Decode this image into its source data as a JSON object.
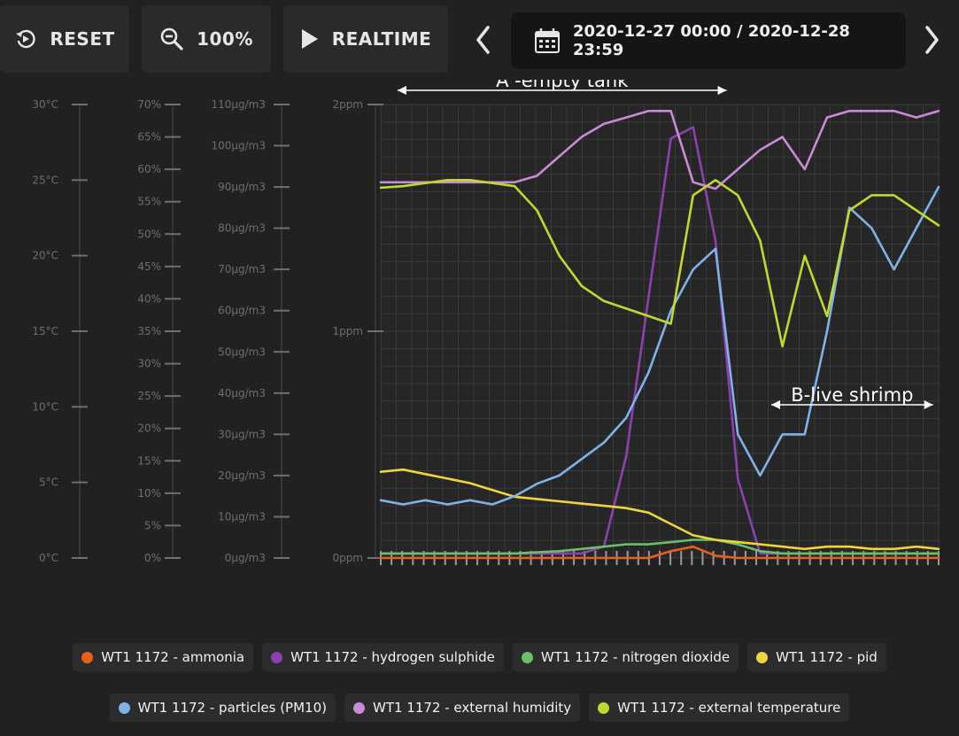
{
  "toolbar": {
    "reset_label": "RESET",
    "zoom_label": "100%",
    "realtime_label": "REALTIME",
    "date_range": "2020-12-27 00:00 / 2020-12-28 23:59",
    "icons": {
      "reset": "reset-icon",
      "zoom": "zoom-out-icon",
      "realtime": "play-icon",
      "calendar": "calendar-icon",
      "prev": "chevron-left-icon",
      "next": "chevron-right-icon"
    }
  },
  "colors": {
    "background": "#212121",
    "grid": "#3a3a3a",
    "axis_text": "#6e6e6e",
    "annotation": "#ffffff"
  },
  "chart_data": {
    "type": "line",
    "x": [
      0,
      4,
      8,
      12,
      16,
      20,
      24,
      28,
      32,
      36,
      40,
      44,
      48,
      52,
      56,
      60,
      64,
      68,
      72,
      76,
      80,
      84,
      88,
      92,
      96,
      100
    ],
    "xlim": [
      0,
      100
    ],
    "axes": [
      {
        "id": "temperature",
        "ticks": [
          "0°C",
          "5°C",
          "10°C",
          "15°C",
          "20°C",
          "25°C",
          "30°C"
        ],
        "range": [
          0,
          30
        ]
      },
      {
        "id": "humidity",
        "ticks": [
          "0%",
          "5%",
          "10%",
          "15%",
          "20%",
          "25%",
          "30%",
          "35%",
          "40%",
          "45%",
          "50%",
          "55%",
          "60%",
          "65%",
          "70%"
        ],
        "range": [
          0,
          70
        ]
      },
      {
        "id": "particles",
        "ticks": [
          "0µg/m3",
          "10µg/m3",
          "20µg/m3",
          "30µg/m3",
          "40µg/m3",
          "50µg/m3",
          "60µg/m3",
          "70µg/m3",
          "80µg/m3",
          "90µg/m3",
          "100µg/m3",
          "110µg/m3"
        ],
        "range": [
          0,
          110
        ]
      },
      {
        "id": "gas",
        "ticks": [
          "0ppm",
          "1ppm",
          "2ppm"
        ],
        "range": [
          0,
          2
        ]
      }
    ],
    "series": [
      {
        "name": "WT1 1172 - ammonia",
        "color": "#e8601c",
        "axis": "gas",
        "values": [
          0,
          0,
          0,
          0,
          0,
          0,
          0,
          0,
          0,
          0,
          0,
          0,
          0,
          0.03,
          0.05,
          0.01,
          0,
          0,
          0,
          0,
          0,
          0,
          0,
          0,
          0,
          0
        ]
      },
      {
        "name": "WT1 1172 - hydrogen sulphide",
        "color": "#8e3fb0",
        "axis": "gas",
        "values": [
          0.02,
          0.02,
          0.02,
          0.02,
          0.02,
          0.02,
          0.02,
          0.02,
          0.02,
          0.02,
          0.05,
          0.45,
          1.15,
          1.85,
          1.9,
          1.4,
          0.35,
          0.02,
          0.02,
          0.02,
          0.02,
          0.02,
          0.02,
          0.02,
          0.02,
          0.02
        ]
      },
      {
        "name": "WT1 1172 - nitrogen dioxide",
        "color": "#6abf69",
        "axis": "gas",
        "values": [
          0.02,
          0.02,
          0.02,
          0.02,
          0.02,
          0.02,
          0.02,
          0.025,
          0.03,
          0.04,
          0.05,
          0.06,
          0.06,
          0.07,
          0.08,
          0.08,
          0.06,
          0.03,
          0.02,
          0.02,
          0.02,
          0.02,
          0.02,
          0.02,
          0.02,
          0.02
        ]
      },
      {
        "name": "WT1 1172 - pid",
        "color": "#f0d43a",
        "axis": "gas",
        "values": [
          0.38,
          0.39,
          0.37,
          0.35,
          0.33,
          0.3,
          0.27,
          0.26,
          0.25,
          0.24,
          0.23,
          0.22,
          0.2,
          0.15,
          0.1,
          0.08,
          0.07,
          0.06,
          0.05,
          0.04,
          0.05,
          0.05,
          0.04,
          0.04,
          0.05,
          0.04
        ]
      },
      {
        "name": "WT1 1172 - particles (PM10)",
        "color": "#7fb3e8",
        "axis": "particles",
        "values": [
          14,
          13,
          14,
          13,
          14,
          13,
          15,
          18,
          20,
          24,
          28,
          34,
          45,
          60,
          70,
          75,
          30,
          20,
          30,
          30,
          55,
          85,
          80,
          70,
          80,
          90
        ]
      },
      {
        "name": "WT1 1172 - external humidity",
        "color": "#c98ad8",
        "axis": "humidity",
        "values": [
          58,
          58,
          58,
          58,
          58,
          58,
          58,
          59,
          62,
          65,
          67,
          68,
          69,
          69,
          58,
          57,
          60,
          63,
          65,
          60,
          68,
          69,
          69,
          69,
          68,
          69
        ]
      },
      {
        "name": "WT1 1172 - external temperature",
        "color": "#c2d82e",
        "axis": "temperature",
        "values": [
          24.5,
          24.6,
          24.8,
          25,
          25,
          24.8,
          24.6,
          23,
          20,
          18,
          17,
          16.5,
          16,
          15.5,
          24,
          25,
          24,
          21,
          14,
          20,
          16,
          23,
          24,
          24,
          23,
          22
        ]
      }
    ],
    "annotations": [
      {
        "text": "A -empty tank",
        "x_start": 3,
        "x_end": 62
      },
      {
        "text": "B-live shrimp",
        "x_start": 70,
        "x_end": 99
      }
    ],
    "grid": true,
    "legend": "bottom"
  }
}
